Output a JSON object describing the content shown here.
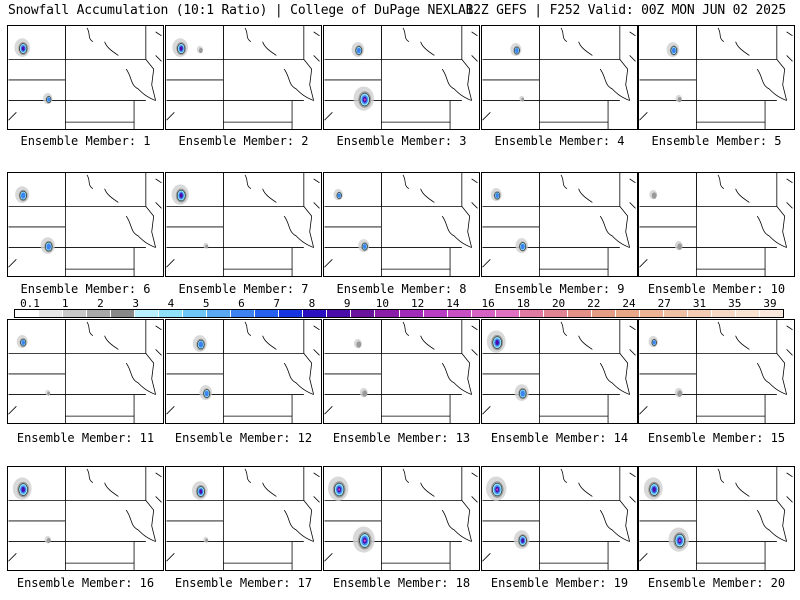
{
  "header": {
    "left": "Snowfall Accumulation (10:1 Ratio) | College of DuPage NEXLAB",
    "right": "12Z GEFS | F252 Valid: 00Z MON JUN 02 2025"
  },
  "colorbar": {
    "ticks": [
      "0.1",
      "1",
      "2",
      "3",
      "4",
      "5",
      "6",
      "7",
      "8",
      "9",
      "10",
      "12",
      "14",
      "16",
      "18",
      "20",
      "22",
      "24",
      "27",
      "31",
      "35",
      "39"
    ],
    "colors": [
      "#ffffff",
      "#e6e6e6",
      "#c8c8c8",
      "#a8a8a8",
      "#888888",
      "#b8f0ff",
      "#8ee0f8",
      "#6ec6f6",
      "#5aa8f4",
      "#3d82f0",
      "#2560f0",
      "#1634e0",
      "#2a10c0",
      "#4a0ca8",
      "#6a149e",
      "#8a1ea8",
      "#a22ab8",
      "#b83cc4",
      "#c84ec4",
      "#d662c4",
      "#e070c0",
      "#e07aa0",
      "#e08494",
      "#e29088",
      "#e49c84",
      "#e8a888",
      "#ecb494",
      "#f0c0a4",
      "#f4ccb4",
      "#f6d8c4",
      "#f8e2d2",
      "#fae8dc"
    ]
  },
  "members": [
    {
      "label": "Ensemble Member: 1",
      "blobs": [
        {
          "loc": "nw",
          "s": 1.0
        },
        {
          "loc": "co",
          "s": 0.6
        }
      ]
    },
    {
      "label": "Ensemble Member: 2",
      "blobs": [
        {
          "loc": "nw",
          "s": 1.0
        },
        {
          "loc": "mt",
          "s": 0.4
        }
      ]
    },
    {
      "label": "Ensemble Member: 3",
      "blobs": [
        {
          "loc": "mt",
          "s": 0.8
        },
        {
          "loc": "co",
          "s": 1.3
        }
      ]
    },
    {
      "label": "Ensemble Member: 4",
      "blobs": [
        {
          "loc": "mt",
          "s": 0.7
        },
        {
          "loc": "co",
          "s": 0.3
        }
      ]
    },
    {
      "label": "Ensemble Member: 5",
      "blobs": [
        {
          "loc": "mt",
          "s": 0.8
        },
        {
          "loc": "co",
          "s": 0.4
        }
      ]
    },
    {
      "label": "Ensemble Member: 6",
      "blobs": [
        {
          "loc": "nw",
          "s": 0.9
        },
        {
          "loc": "co",
          "s": 0.9
        }
      ]
    },
    {
      "label": "Ensemble Member: 7",
      "blobs": [
        {
          "loc": "nw",
          "s": 1.1
        },
        {
          "loc": "co",
          "s": 0.3
        }
      ]
    },
    {
      "label": "Ensemble Member: 8",
      "blobs": [
        {
          "loc": "nw",
          "s": 0.6
        },
        {
          "loc": "co",
          "s": 0.7
        }
      ]
    },
    {
      "label": "Ensemble Member: 9",
      "blobs": [
        {
          "loc": "nw",
          "s": 0.7
        },
        {
          "loc": "co",
          "s": 0.8
        }
      ]
    },
    {
      "label": "Ensemble Member: 10",
      "blobs": [
        {
          "loc": "nw",
          "s": 0.5
        },
        {
          "loc": "co",
          "s": 0.5
        }
      ]
    },
    {
      "label": "Ensemble Member: 11",
      "blobs": [
        {
          "loc": "nw",
          "s": 0.7
        },
        {
          "loc": "co",
          "s": 0.3
        }
      ]
    },
    {
      "label": "Ensemble Member: 12",
      "blobs": [
        {
          "loc": "mt",
          "s": 0.9
        },
        {
          "loc": "co",
          "s": 0.8
        }
      ]
    },
    {
      "label": "Ensemble Member: 13",
      "blobs": [
        {
          "loc": "mt",
          "s": 0.5
        },
        {
          "loc": "co",
          "s": 0.5
        }
      ]
    },
    {
      "label": "Ensemble Member: 14",
      "blobs": [
        {
          "loc": "nw",
          "s": 1.2
        },
        {
          "loc": "co",
          "s": 0.9
        }
      ]
    },
    {
      "label": "Ensemble Member: 15",
      "blobs": [
        {
          "loc": "nw",
          "s": 0.6
        },
        {
          "loc": "co",
          "s": 0.5
        }
      ]
    },
    {
      "label": "Ensemble Member: 16",
      "blobs": [
        {
          "loc": "nw",
          "s": 1.2
        },
        {
          "loc": "co",
          "s": 0.4
        }
      ]
    },
    {
      "label": "Ensemble Member: 17",
      "blobs": [
        {
          "loc": "mt",
          "s": 1.0
        },
        {
          "loc": "co",
          "s": 0.3
        }
      ]
    },
    {
      "label": "Ensemble Member: 18",
      "blobs": [
        {
          "loc": "nw",
          "s": 1.3
        },
        {
          "loc": "co",
          "s": 1.4
        }
      ]
    },
    {
      "label": "Ensemble Member: 19",
      "blobs": [
        {
          "loc": "nw",
          "s": 1.3
        },
        {
          "loc": "co",
          "s": 1.0
        }
      ]
    },
    {
      "label": "Ensemble Member: 20",
      "blobs": [
        {
          "loc": "nw",
          "s": 1.2
        },
        {
          "loc": "co",
          "s": 1.3
        }
      ]
    }
  ]
}
